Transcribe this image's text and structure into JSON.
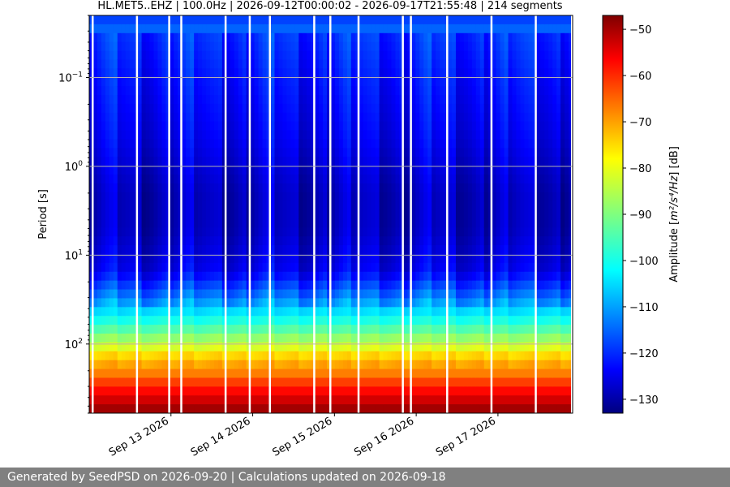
{
  "chart_data": {
    "type": "heatmap",
    "title": "HL.MET5..EHZ | 100.0Hz | 2026-09-12T00:00:02 - 2026-09-17T21:55:48 | 214 segments",
    "ylabel": "Period [s]",
    "y_scale": "log",
    "y_inverted": true,
    "y_range": [
      0.02,
      600
    ],
    "y_ticks": [
      {
        "value": 0.1,
        "base": "10",
        "exp": "−1"
      },
      {
        "value": 1,
        "base": "10",
        "exp": "0"
      },
      {
        "value": 10,
        "base": "10",
        "exp": "1"
      },
      {
        "value": 100,
        "base": "10",
        "exp": "2"
      }
    ],
    "x_range": [
      "2026-09-12T00:00:02",
      "2026-09-17T21:55:48"
    ],
    "x_ticks": [
      {
        "date": "2026-09-13",
        "label": "Sep 13 2026"
      },
      {
        "date": "2026-09-14",
        "label": "Sep 14 2026"
      },
      {
        "date": "2026-09-15",
        "label": "Sep 15 2026"
      },
      {
        "date": "2026-09-16",
        "label": "Sep 16 2026"
      },
      {
        "date": "2026-09-17",
        "label": "Sep 17 2026"
      }
    ],
    "colorbar": {
      "label_prefix": "Amplitude [",
      "label_math": "m²/s⁴/Hz",
      "label_suffix": "] [dB]",
      "range": [
        -133,
        -47
      ],
      "ticks": [
        -50,
        -60,
        -70,
        -80,
        -90,
        -100,
        -110,
        -120,
        -130
      ],
      "colormap": "jet"
    },
    "amplitude_profile": [
      {
        "period": 0.02,
        "db": -128
      },
      {
        "period": 0.025,
        "db": -106
      },
      {
        "period": 0.03,
        "db": -118
      },
      {
        "period": 0.1,
        "db": -121
      },
      {
        "period": 0.5,
        "db": -124
      },
      {
        "period": 2,
        "db": -128
      },
      {
        "period": 5,
        "db": -128
      },
      {
        "period": 15,
        "db": -124
      },
      {
        "period": 30,
        "db": -112
      },
      {
        "period": 60,
        "db": -98
      },
      {
        "period": 100,
        "db": -86
      },
      {
        "period": 130,
        "db": -78
      },
      {
        "period": 200,
        "db": -70
      },
      {
        "period": 280,
        "db": -62
      },
      {
        "period": 400,
        "db": -55
      },
      {
        "period": 600,
        "db": -48
      }
    ],
    "grid": true
  },
  "footer": {
    "text": "Generated by SeedPSD on 2026-09-20 | Calculations updated on 2026-09-18"
  }
}
